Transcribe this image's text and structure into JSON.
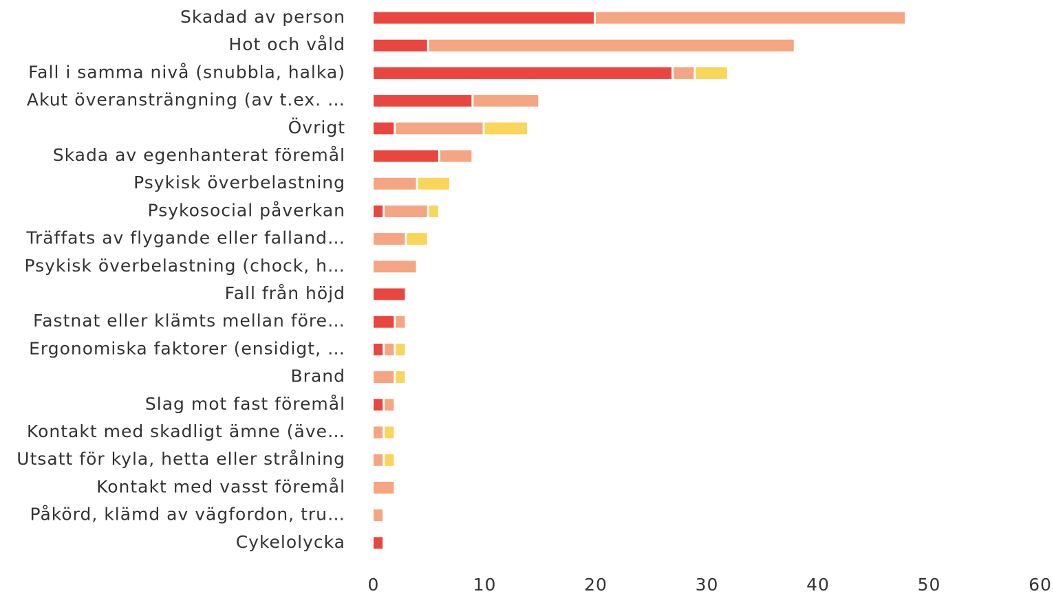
{
  "chart_data": {
    "type": "stacked_barh",
    "categories": [
      "Skadad av person",
      "Hot och våld",
      "Fall i samma nivå (snubbla, halka)",
      "Akut överansträngning (av t.ex. …",
      "Övrigt",
      "Skada av egenhanterat föremål",
      "Psykisk överbelastning",
      "Psykosocial påverkan",
      "Träffats av flygande eller falland…",
      "Psykisk överbelastning (chock, h…",
      "Fall från höjd",
      "Fastnat eller klämts mellan före…",
      "Ergonomiska faktorer (ensidigt, …",
      "Brand",
      "Slag mot fast föremål",
      "Kontakt med skadligt ämne (äve…",
      "Utsatt för kyla, hetta eller strålning",
      "Kontakt med vasst föremål",
      "Påkörd, klämd av vägfordon, tru…",
      "Cykelolycka"
    ],
    "series": [
      {
        "color": "#e8463e",
        "values": [
          20,
          5,
          27,
          9,
          2,
          6,
          0,
          1,
          0,
          0,
          3,
          2,
          1,
          0,
          1,
          0,
          0,
          0,
          0,
          1
        ]
      },
      {
        "color": "#f5a582",
        "values": [
          28,
          33,
          2,
          6,
          8,
          3,
          4,
          4,
          3,
          4,
          0,
          1,
          1,
          2,
          1,
          1,
          1,
          2,
          1,
          0
        ]
      },
      {
        "color": "#f9d55a",
        "values": [
          0,
          0,
          3,
          0,
          4,
          0,
          3,
          1,
          2,
          0,
          0,
          0,
          1,
          1,
          0,
          1,
          1,
          0,
          0,
          0
        ]
      }
    ],
    "xlim": [
      0,
      60
    ],
    "xticks": [
      0,
      10,
      20,
      30,
      40,
      50,
      60
    ]
  }
}
